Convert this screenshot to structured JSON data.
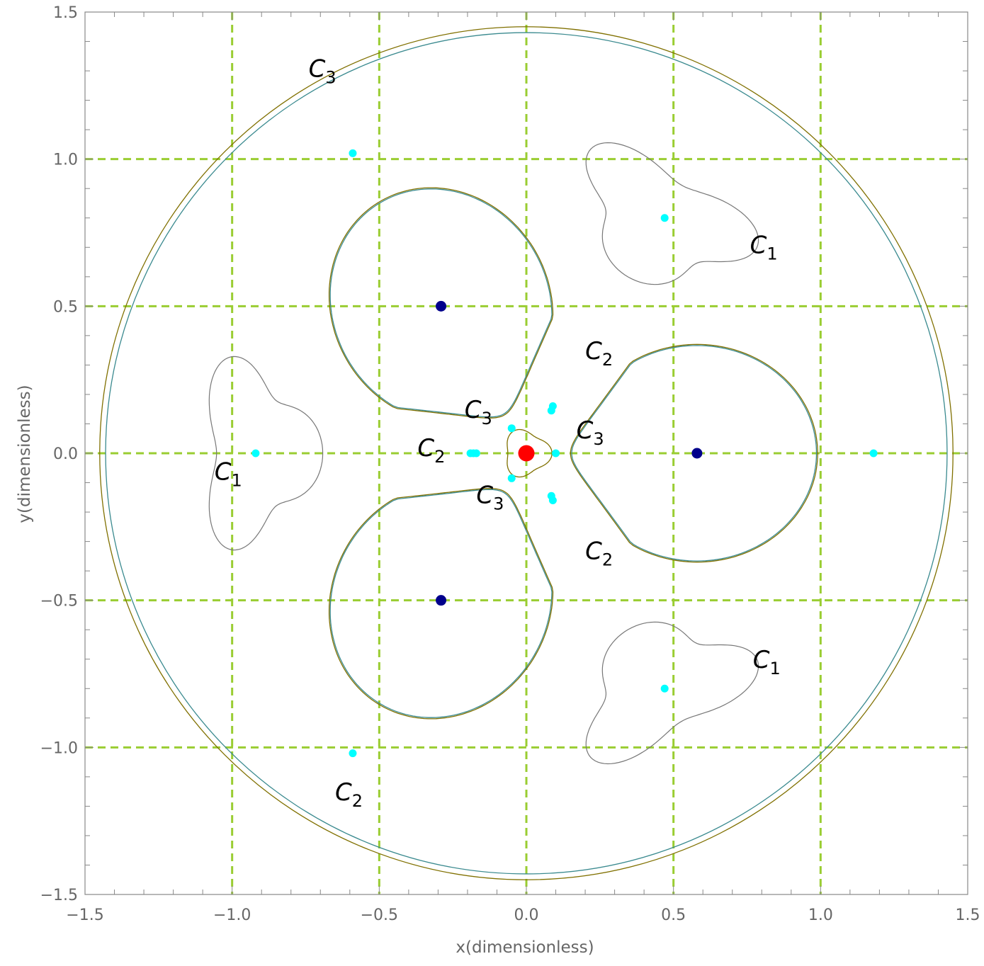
{
  "chart_data": {
    "type": "scatter",
    "xlabel": "x(dimensionless)",
    "ylabel": "y(dimensionless)",
    "xlim": [
      -1.5,
      1.5
    ],
    "ylim": [
      -1.5,
      1.5
    ],
    "x_ticks": [
      -1.5,
      -1.0,
      -0.5,
      0.0,
      0.5,
      1.0,
      1.5
    ],
    "y_ticks": [
      -1.5,
      -1.0,
      -0.5,
      0.0,
      0.5,
      1.0,
      1.5
    ],
    "x_tick_labels": [
      "−1.5",
      "−1.0",
      "−0.5",
      "0.0",
      "0.5",
      "1.0",
      "1.5"
    ],
    "y_tick_labels": [
      "−1.5",
      "−1.0",
      "−0.5",
      "0.0",
      "0.5",
      "1.0",
      "1.5"
    ],
    "grid": true,
    "grid_lines": [
      -1.0,
      -0.5,
      0.0,
      0.5,
      1.0
    ],
    "colors": {
      "grid": "#9acd32",
      "frame": "#888888",
      "curve_olive": "#807000",
      "curve_teal": "#3a8a8f",
      "curve_gray": "#777777",
      "cyan_points": "#00ffff",
      "blue_points": "#00008b",
      "center": "#ff0000"
    },
    "curves": {
      "outer_circle_radii": [
        1.45,
        1.43
      ],
      "petal_angles_deg": [
        0,
        120,
        240
      ],
      "petal_reach": [
        1.0,
        0.99
      ],
      "kidney_angles_deg": [
        60,
        180,
        300
      ]
    },
    "points": {
      "center": [
        0.0,
        0.0
      ],
      "blue": [
        [
          0.58,
          0.0
        ],
        [
          -0.29,
          0.5
        ],
        [
          -0.29,
          -0.5
        ]
      ],
      "cyan": [
        [
          1.18,
          0.0
        ],
        [
          -0.59,
          1.02
        ],
        [
          -0.59,
          -1.02
        ],
        [
          -0.92,
          0.0
        ],
        [
          0.47,
          0.8
        ],
        [
          0.47,
          -0.8
        ],
        [
          0.1,
          0.0
        ],
        [
          -0.05,
          0.085
        ],
        [
          -0.05,
          -0.085
        ],
        [
          0.09,
          0.16
        ],
        [
          0.085,
          0.145
        ],
        [
          0.09,
          -0.16
        ],
        [
          0.085,
          -0.145
        ],
        [
          -0.18,
          0.0
        ],
        [
          -0.17,
          0.0
        ],
        [
          -0.19,
          0.0
        ]
      ]
    },
    "annotations": [
      {
        "main": "C",
        "sub": "3",
        "x": -0.74,
        "y": 1.28
      },
      {
        "main": "C",
        "sub": "1",
        "x": 0.76,
        "y": 0.68
      },
      {
        "main": "C",
        "sub": "2",
        "x": 0.2,
        "y": 0.32
      },
      {
        "main": "C",
        "sub": "3",
        "x": -0.21,
        "y": 0.12
      },
      {
        "main": "C",
        "sub": "3",
        "x": 0.17,
        "y": 0.05
      },
      {
        "main": "C",
        "sub": "2",
        "x": -0.37,
        "y": -0.01
      },
      {
        "main": "C",
        "sub": "1",
        "x": -1.06,
        "y": -0.09
      },
      {
        "main": "C",
        "sub": "3",
        "x": -0.17,
        "y": -0.17
      },
      {
        "main": "C",
        "sub": "2",
        "x": 0.2,
        "y": -0.36
      },
      {
        "main": "C",
        "sub": "1",
        "x": 0.77,
        "y": -0.73
      },
      {
        "main": "C",
        "sub": "2",
        "x": -0.65,
        "y": -1.18
      }
    ]
  }
}
